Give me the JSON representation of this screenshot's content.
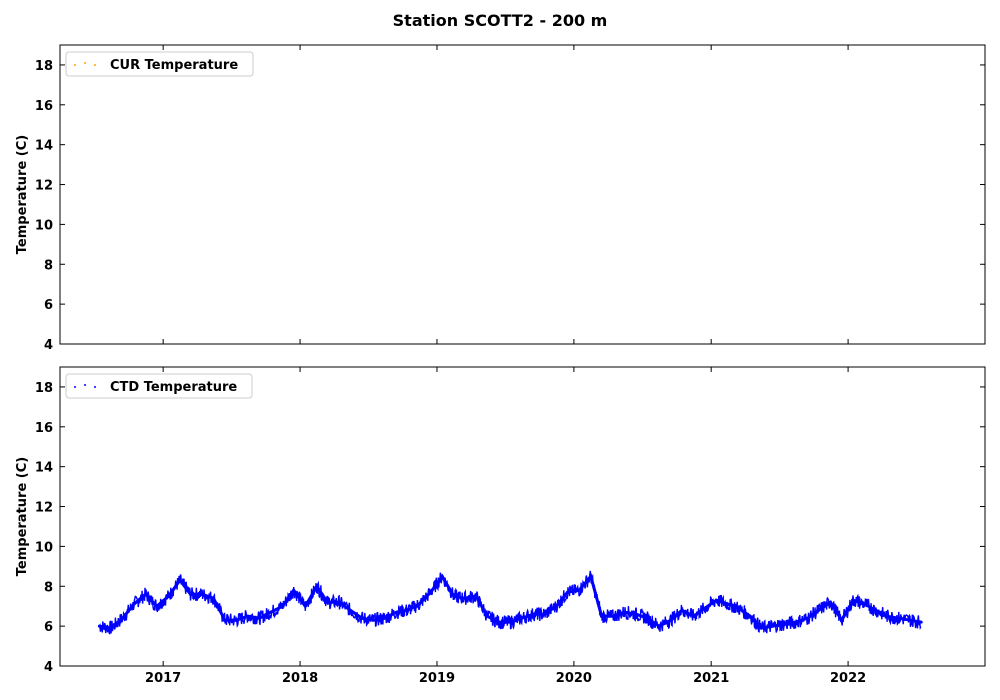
{
  "chart_data": {
    "type": "line",
    "title": "Station SCOTT2 - 200 m",
    "grid": false,
    "xticks": [
      "2017",
      "2018",
      "2019",
      "2020",
      "2021",
      "2022"
    ],
    "xlim": [
      "2016-04-01",
      "2023-01-01"
    ],
    "ylim": [
      4,
      19
    ],
    "yticks": [
      "4",
      "6",
      "8",
      "10",
      "12",
      "14",
      "16",
      "18"
    ],
    "legend_placement": "top-left",
    "panels": [
      {
        "ylabel": "Temperature (C)",
        "series": [
          {
            "name": "CUR Temperature",
            "color": "#ffa500",
            "points": []
          }
        ]
      },
      {
        "ylabel": "Temperature (C)",
        "series": [
          {
            "name": "CTD Temperature",
            "color": "#0000ff",
            "points": [
              [
                "2016-07-15",
                6.0
              ],
              [
                "2016-08-15",
                5.9
              ],
              [
                "2016-09-15",
                6.4
              ],
              [
                "2016-10-15",
                7.1
              ],
              [
                "2016-11-15",
                7.6
              ],
              [
                "2016-12-15",
                7.0
              ],
              [
                "2017-01-15",
                7.5
              ],
              [
                "2017-02-15",
                8.3
              ],
              [
                "2017-03-15",
                7.6
              ],
              [
                "2017-04-15",
                7.6
              ],
              [
                "2017-05-15",
                7.4
              ],
              [
                "2017-06-15",
                6.3
              ],
              [
                "2017-07-15",
                6.3
              ],
              [
                "2017-08-15",
                6.5
              ],
              [
                "2017-09-15",
                6.4
              ],
              [
                "2017-10-15",
                6.7
              ],
              [
                "2017-11-15",
                7.0
              ],
              [
                "2017-12-15",
                7.8
              ],
              [
                "2018-01-15",
                7.0
              ],
              [
                "2018-02-15",
                8.0
              ],
              [
                "2018-03-15",
                7.2
              ],
              [
                "2018-04-15",
                7.2
              ],
              [
                "2018-05-15",
                6.8
              ],
              [
                "2018-06-15",
                6.4
              ],
              [
                "2018-07-15",
                6.3
              ],
              [
                "2018-08-15",
                6.4
              ],
              [
                "2018-09-15",
                6.7
              ],
              [
                "2018-10-15",
                6.8
              ],
              [
                "2018-11-15",
                7.1
              ],
              [
                "2018-12-15",
                7.7
              ],
              [
                "2019-01-15",
                8.5
              ],
              [
                "2019-02-15",
                7.5
              ],
              [
                "2019-03-15",
                7.4
              ],
              [
                "2019-04-15",
                7.5
              ],
              [
                "2019-05-15",
                6.5
              ],
              [
                "2019-06-15",
                6.2
              ],
              [
                "2019-07-15",
                6.2
              ],
              [
                "2019-08-15",
                6.4
              ],
              [
                "2019-09-15",
                6.6
              ],
              [
                "2019-10-15",
                6.6
              ],
              [
                "2019-11-15",
                7.0
              ],
              [
                "2019-12-15",
                7.7
              ],
              [
                "2020-01-15",
                7.8
              ],
              [
                "2020-02-15",
                8.5
              ],
              [
                "2020-03-15",
                6.5
              ],
              [
                "2020-04-15",
                6.5
              ],
              [
                "2020-05-15",
                6.7
              ],
              [
                "2020-06-15",
                6.6
              ],
              [
                "2020-07-15",
                6.4
              ],
              [
                "2020-08-15",
                6.0
              ],
              [
                "2020-09-15",
                6.3
              ],
              [
                "2020-10-15",
                6.8
              ],
              [
                "2020-11-15",
                6.5
              ],
              [
                "2020-12-15",
                6.9
              ],
              [
                "2021-01-15",
                7.3
              ],
              [
                "2021-02-15",
                7.1
              ],
              [
                "2021-03-15",
                6.9
              ],
              [
                "2021-04-15",
                6.5
              ],
              [
                "2021-05-15",
                5.9
              ],
              [
                "2021-06-15",
                6.0
              ],
              [
                "2021-07-15",
                6.1
              ],
              [
                "2021-08-15",
                6.2
              ],
              [
                "2021-09-15",
                6.4
              ],
              [
                "2021-10-15",
                6.8
              ],
              [
                "2021-11-15",
                7.2
              ],
              [
                "2021-12-15",
                6.3
              ],
              [
                "2022-01-15",
                7.3
              ],
              [
                "2022-02-15",
                7.1
              ],
              [
                "2022-03-15",
                6.8
              ],
              [
                "2022-04-15",
                6.5
              ],
              [
                "2022-05-15",
                6.4
              ],
              [
                "2022-06-15",
                6.3
              ],
              [
                "2022-07-15",
                6.2
              ]
            ]
          }
        ]
      }
    ]
  }
}
